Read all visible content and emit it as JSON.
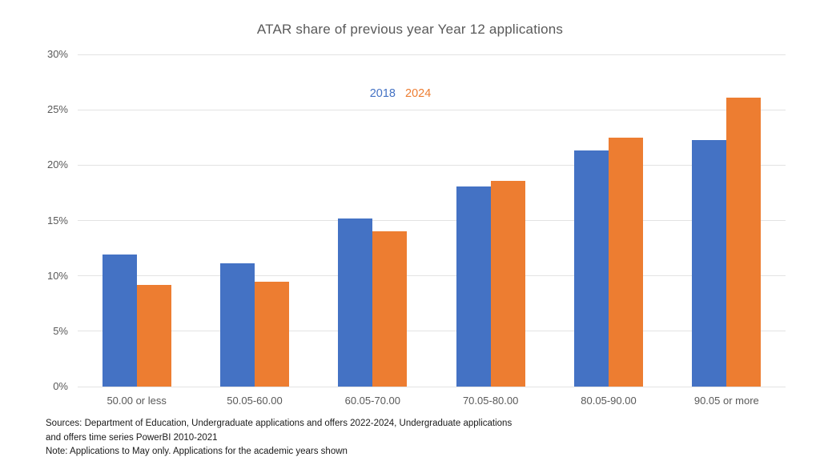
{
  "chart_data": {
    "type": "bar",
    "title": "ATAR share of previous year Year 12 applications",
    "categories": [
      "50.00 or less",
      "50.05-60.00",
      "60.05-70.00",
      "70.05-80.00",
      "80.05-90.00",
      "90.05 or more"
    ],
    "series": [
      {
        "name": "2018",
        "color": "#4472C4",
        "values": [
          11.9,
          11.1,
          15.2,
          18.1,
          21.3,
          22.3
        ]
      },
      {
        "name": "2024",
        "color": "#ED7D31",
        "values": [
          9.2,
          9.5,
          14.0,
          18.6,
          22.5,
          26.1
        ]
      }
    ],
    "xlabel": "",
    "ylabel": "",
    "ylim": [
      0,
      30
    ],
    "y_tick_step": 5,
    "y_tick_labels": [
      "0%",
      "5%",
      "10%",
      "15%",
      "20%",
      "25%",
      "30%"
    ],
    "grid": true,
    "legend_position": "top-center",
    "gridline_color": "#e3e3e3",
    "title_color": "#595959",
    "axis_label_color": "#595959"
  },
  "footer": {
    "lines": [
      "Sources: Department of Education, Undergraduate applications and offers 2022-2024, Undergraduate applications",
      "and offers time series PowerBI 2010-2021",
      "Note: Applications to May only. Applications for the academic years shown"
    ]
  }
}
